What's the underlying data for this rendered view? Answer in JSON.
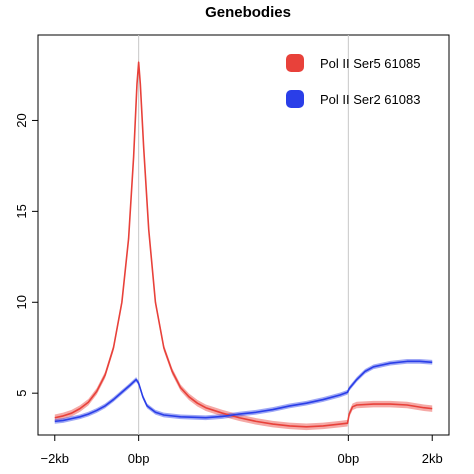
{
  "chart_data": {
    "type": "line",
    "title": "Genebodies",
    "xlabel": "",
    "ylabel": "",
    "x_ticks": [
      {
        "pos": 0,
        "label": "−2kb"
      },
      {
        "pos": 1,
        "label": "0bp"
      },
      {
        "pos": 3.5,
        "label": "0bp"
      },
      {
        "pos": 4.5,
        "label": "2kb"
      }
    ],
    "x_range": [
      -0.2,
      4.7
    ],
    "y_ticks": [
      5,
      10,
      15,
      20
    ],
    "ylim": [
      2.7,
      24.7
    ],
    "vertical_guides": [
      1,
      3.5
    ],
    "grid": false,
    "legend_position": "top-right",
    "series": [
      {
        "name": "Pol II Ser5 61085",
        "color": "#e8413a",
        "band": 0.18,
        "points": [
          [
            0,
            3.65
          ],
          [
            0.1,
            3.75
          ],
          [
            0.2,
            3.9
          ],
          [
            0.3,
            4.15
          ],
          [
            0.4,
            4.5
          ],
          [
            0.5,
            5.1
          ],
          [
            0.6,
            6.0
          ],
          [
            0.7,
            7.5
          ],
          [
            0.8,
            10.0
          ],
          [
            0.88,
            13.5
          ],
          [
            0.94,
            18.0
          ],
          [
            0.98,
            22.0
          ],
          [
            1.0,
            23.2
          ],
          [
            1.02,
            22.0
          ],
          [
            1.06,
            18.5
          ],
          [
            1.12,
            14.0
          ],
          [
            1.2,
            10.0
          ],
          [
            1.3,
            7.5
          ],
          [
            1.4,
            6.2
          ],
          [
            1.5,
            5.3
          ],
          [
            1.6,
            4.8
          ],
          [
            1.7,
            4.45
          ],
          [
            1.8,
            4.2
          ],
          [
            2.0,
            3.9
          ],
          [
            2.2,
            3.65
          ],
          [
            2.4,
            3.45
          ],
          [
            2.6,
            3.3
          ],
          [
            2.8,
            3.2
          ],
          [
            3.0,
            3.15
          ],
          [
            3.2,
            3.2
          ],
          [
            3.4,
            3.3
          ],
          [
            3.49,
            3.35
          ],
          [
            3.51,
            3.85
          ],
          [
            3.55,
            4.25
          ],
          [
            3.6,
            4.35
          ],
          [
            3.8,
            4.4
          ],
          [
            4.0,
            4.4
          ],
          [
            4.2,
            4.35
          ],
          [
            4.4,
            4.2
          ],
          [
            4.5,
            4.15
          ]
        ]
      },
      {
        "name": "Pol II Ser2 61083",
        "color": "#2a3ee8",
        "band": 0.13,
        "points": [
          [
            0,
            3.45
          ],
          [
            0.1,
            3.5
          ],
          [
            0.2,
            3.6
          ],
          [
            0.3,
            3.7
          ],
          [
            0.4,
            3.85
          ],
          [
            0.5,
            4.05
          ],
          [
            0.6,
            4.3
          ],
          [
            0.7,
            4.65
          ],
          [
            0.8,
            5.05
          ],
          [
            0.9,
            5.45
          ],
          [
            0.97,
            5.75
          ],
          [
            1.0,
            5.55
          ],
          [
            1.05,
            4.8
          ],
          [
            1.1,
            4.3
          ],
          [
            1.2,
            3.95
          ],
          [
            1.3,
            3.8
          ],
          [
            1.5,
            3.7
          ],
          [
            1.8,
            3.65
          ],
          [
            2.0,
            3.72
          ],
          [
            2.2,
            3.85
          ],
          [
            2.4,
            3.95
          ],
          [
            2.6,
            4.1
          ],
          [
            2.8,
            4.3
          ],
          [
            3.0,
            4.45
          ],
          [
            3.2,
            4.65
          ],
          [
            3.4,
            4.9
          ],
          [
            3.49,
            5.05
          ],
          [
            3.51,
            5.25
          ],
          [
            3.6,
            5.75
          ],
          [
            3.7,
            6.2
          ],
          [
            3.8,
            6.45
          ],
          [
            4.0,
            6.65
          ],
          [
            4.2,
            6.75
          ],
          [
            4.35,
            6.75
          ],
          [
            4.5,
            6.7
          ]
        ]
      }
    ]
  }
}
